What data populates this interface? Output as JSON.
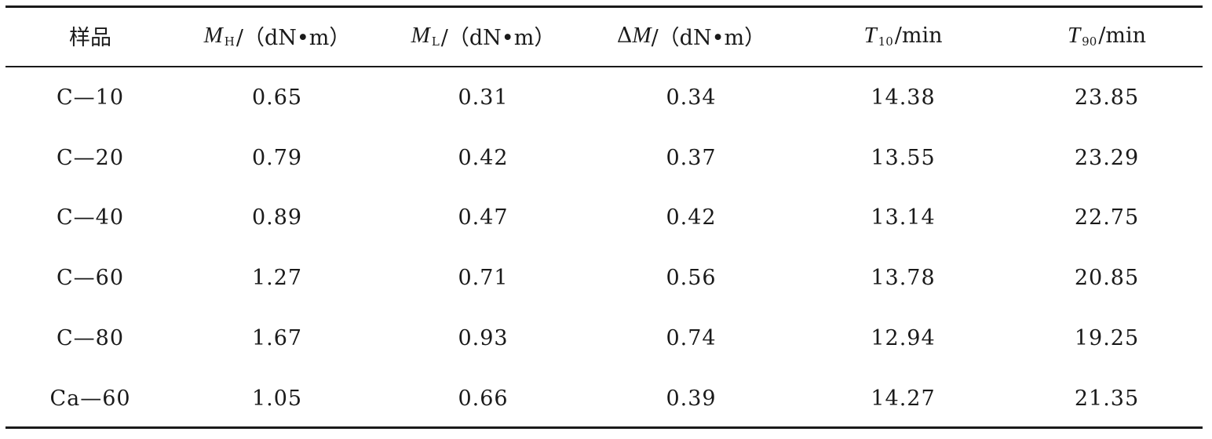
{
  "table": {
    "headers": [
      {
        "key": "sample",
        "text": "样品"
      },
      {
        "key": "mh",
        "symbol": "M",
        "sub": "H",
        "unit": "/（dN•m）"
      },
      {
        "key": "ml",
        "symbol": "M",
        "sub": "L",
        "unit": "/（dN•m）"
      },
      {
        "key": "dm",
        "prefix": "Δ",
        "symbol": "M",
        "unit": "/（dN•m）"
      },
      {
        "key": "t10",
        "symbol": "T",
        "sub": "10",
        "unit": "/min"
      },
      {
        "key": "t90",
        "symbol": "T",
        "sub": "90",
        "unit": "/min"
      }
    ],
    "rows": [
      [
        "C—10",
        "0.65",
        "0.31",
        "0.34",
        "14.38",
        "23.85"
      ],
      [
        "C—20",
        "0.79",
        "0.42",
        "0.37",
        "13.55",
        "23.29"
      ],
      [
        "C—40",
        "0.89",
        "0.47",
        "0.42",
        "13.14",
        "22.75"
      ],
      [
        "C—60",
        "1.27",
        "0.71",
        "0.56",
        "13.78",
        "20.85"
      ],
      [
        "C—80",
        "1.67",
        "0.93",
        "0.74",
        "12.94",
        "19.25"
      ],
      [
        "Ca—60",
        "1.05",
        "0.66",
        "0.39",
        "14.27",
        "21.35"
      ]
    ]
  }
}
